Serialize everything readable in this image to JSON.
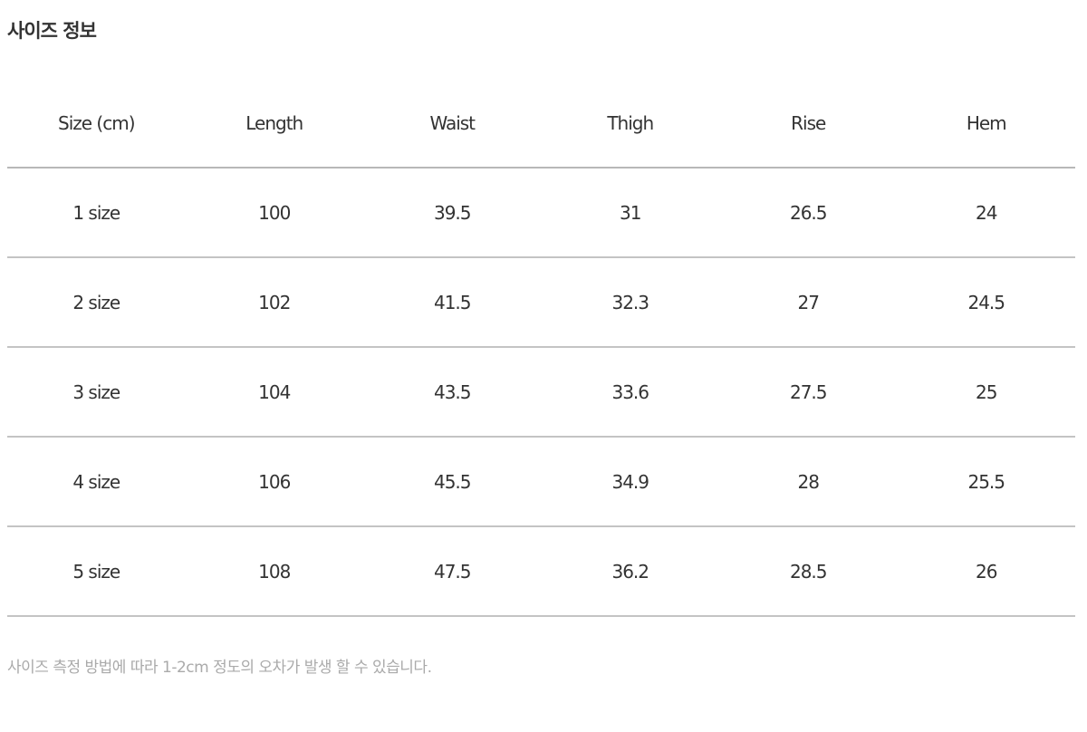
{
  "title": "사이즈 정보",
  "table": {
    "headers": [
      "Size (cm)",
      "Length",
      "Waist",
      "Thigh",
      "Rise",
      "Hem"
    ],
    "rows": [
      [
        "1 size",
        "100",
        "39.5",
        "31",
        "26.5",
        "24"
      ],
      [
        "2 size",
        "102",
        "41.5",
        "32.3",
        "27",
        "24.5"
      ],
      [
        "3 size",
        "104",
        "43.5",
        "33.6",
        "27.5",
        "25"
      ],
      [
        "4 size",
        "106",
        "45.5",
        "34.9",
        "28",
        "25.5"
      ],
      [
        "5 size",
        "108",
        "47.5",
        "36.2",
        "28.5",
        "26"
      ]
    ]
  },
  "note": "사이즈 측정 방법에 따라 1-2cm 정도의 오차가 발생 할 수 있습니다."
}
